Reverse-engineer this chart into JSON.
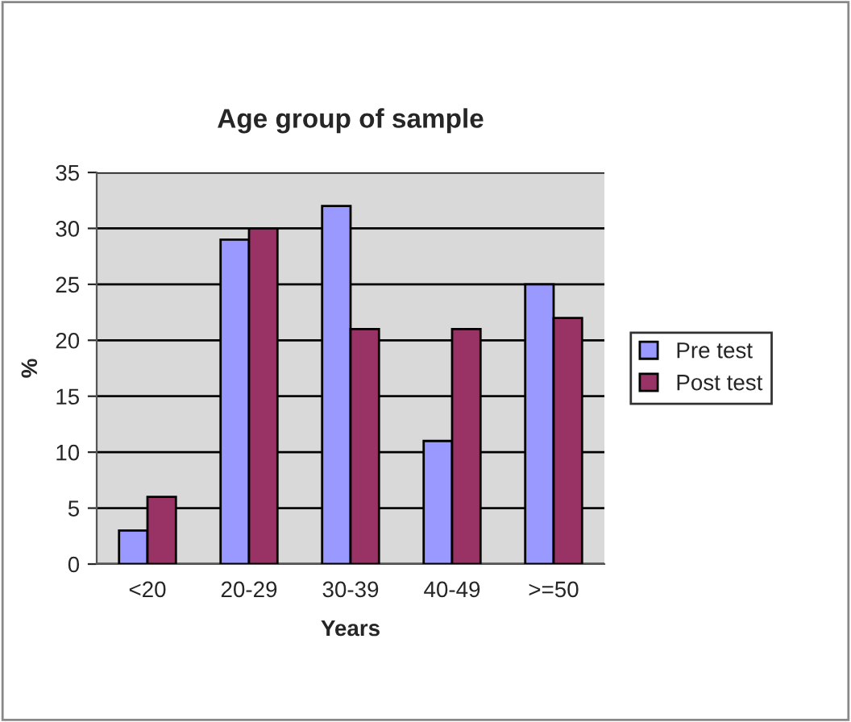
{
  "chart_data": {
    "type": "bar",
    "title": "Age group of sample",
    "xlabel": "Years",
    "ylabel": "%",
    "categories": [
      "<20",
      "20-29",
      "30-39",
      "40-49",
      ">=50"
    ],
    "series": [
      {
        "name": "Pre test",
        "color": "#9999ff",
        "values": [
          3,
          29,
          32,
          11,
          25
        ]
      },
      {
        "name": "Post test",
        "color": "#993366",
        "values": [
          6,
          30,
          21,
          21,
          22
        ]
      }
    ],
    "ylim": [
      0,
      35
    ],
    "yticks": [
      0,
      5,
      10,
      15,
      20,
      25,
      30,
      35
    ],
    "grid": "y",
    "legend": "right"
  }
}
